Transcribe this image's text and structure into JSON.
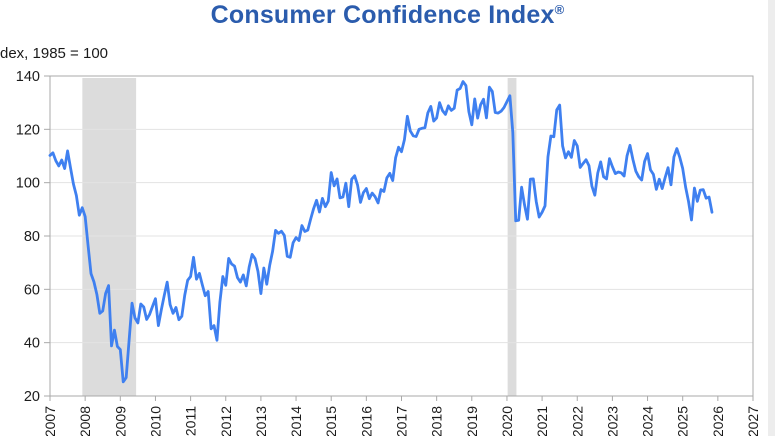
{
  "header": {
    "title": "Consumer Confidence Index",
    "registered_mark": "®",
    "title_color": "#2b5cad"
  },
  "axis_note": "dex, 1985 = 100",
  "chart_data": {
    "type": "line",
    "title": "Consumer Confidence Index®",
    "ylabel": "dex, 1985 = 100",
    "xlabel": "",
    "grid": true,
    "legend": "none",
    "xlim": [
      2007,
      2027
    ],
    "ylim": [
      20,
      140
    ],
    "x_ticks": [
      2007,
      2008,
      2009,
      2010,
      2011,
      2012,
      2013,
      2014,
      2015,
      2016,
      2017,
      2018,
      2019,
      2020,
      2021,
      2022,
      2023,
      2024,
      2025,
      2026,
      2027
    ],
    "y_ticks": [
      20,
      40,
      60,
      80,
      100,
      120,
      140
    ],
    "line_color": "#3f80f0",
    "band_color": "#dcdcdc",
    "grid_color": "#e3e3e3",
    "border_color": "#a9a9a9",
    "tick_label_color": "#1c1c1c",
    "shaded_regions": [
      {
        "start": 2007.92,
        "end": 2009.45
      },
      {
        "start": 2020.02,
        "end": 2020.27
      }
    ],
    "series": [
      {
        "name": "Consumer Confidence Index",
        "frequency": "monthly",
        "start_year": 2007,
        "start_month": 1,
        "end_label": "2025-11",
        "values": [
          110.2,
          111.2,
          108.2,
          106.3,
          108.5,
          105.3,
          111.9,
          105.6,
          99.5,
          95.2,
          87.8,
          90.6,
          87.3,
          76.4,
          65.9,
          62.8,
          58.1,
          51.0,
          51.9,
          58.5,
          61.4,
          38.8,
          44.7,
          38.6,
          37.4,
          25.3,
          26.9,
          40.8,
          54.8,
          49.3,
          47.4,
          54.5,
          53.4,
          48.7,
          50.6,
          53.6,
          56.5,
          46.4,
          52.3,
          57.7,
          62.7,
          54.3,
          51.0,
          53.2,
          48.6,
          49.9,
          57.8,
          63.4,
          64.8,
          72.0,
          63.8,
          66.0,
          61.7,
          57.6,
          59.2,
          45.2,
          46.4,
          40.9,
          55.2,
          64.8,
          61.5,
          71.6,
          69.5,
          68.7,
          64.4,
          62.7,
          65.4,
          61.3,
          68.4,
          73.1,
          71.5,
          66.7,
          58.4,
          68.0,
          61.9,
          69.0,
          74.3,
          82.1,
          81.0,
          81.8,
          80.2,
          72.4,
          72.0,
          77.5,
          79.4,
          78.3,
          83.9,
          81.7,
          82.2,
          86.4,
          90.3,
          93.4,
          89.0,
          94.1,
          91.0,
          93.1,
          103.8,
          98.8,
          101.4,
          94.3,
          94.6,
          99.8,
          91.0,
          101.3,
          102.6,
          99.1,
          92.6,
          96.3,
          97.8,
          94.0,
          96.1,
          94.7,
          92.4,
          97.4,
          96.7,
          101.8,
          103.5,
          100.8,
          109.4,
          113.3,
          111.6,
          116.1,
          124.9,
          119.4,
          117.6,
          117.3,
          120.0,
          120.4,
          120.6,
          126.2,
          128.6,
          123.1,
          124.3,
          130.0,
          127.0,
          125.6,
          128.8,
          127.1,
          127.9,
          134.7,
          135.3,
          137.9,
          136.4,
          126.6,
          121.7,
          131.4,
          124.2,
          129.2,
          131.3,
          124.3,
          135.8,
          134.2,
          126.3,
          126.1,
          126.8,
          128.2,
          130.4,
          132.6,
          118.8,
          85.7,
          85.9,
          98.3,
          91.7,
          86.3,
          101.3,
          101.4,
          92.9,
          87.1,
          88.9,
          91.3,
          109.7,
          117.5,
          117.2,
          127.3,
          129.1,
          113.8,
          109.3,
          111.6,
          109.5,
          115.8,
          113.8,
          105.7,
          107.2,
          108.6,
          106.4,
          98.7,
          95.3,
          103.6,
          107.8,
          102.2,
          101.4,
          109.0,
          106.0,
          103.4,
          104.0,
          103.7,
          102.5,
          110.1,
          114.0,
          108.7,
          104.3,
          102.2,
          101.0,
          108.0,
          110.9,
          104.8,
          103.1,
          97.5,
          101.3,
          97.8,
          101.9,
          105.6,
          99.2,
          109.6,
          112.8,
          109.5,
          105.3,
          98.3,
          92.9,
          86.0,
          98.0,
          93.0,
          97.2,
          97.4,
          94.2,
          94.6,
          88.9
        ]
      }
    ]
  }
}
